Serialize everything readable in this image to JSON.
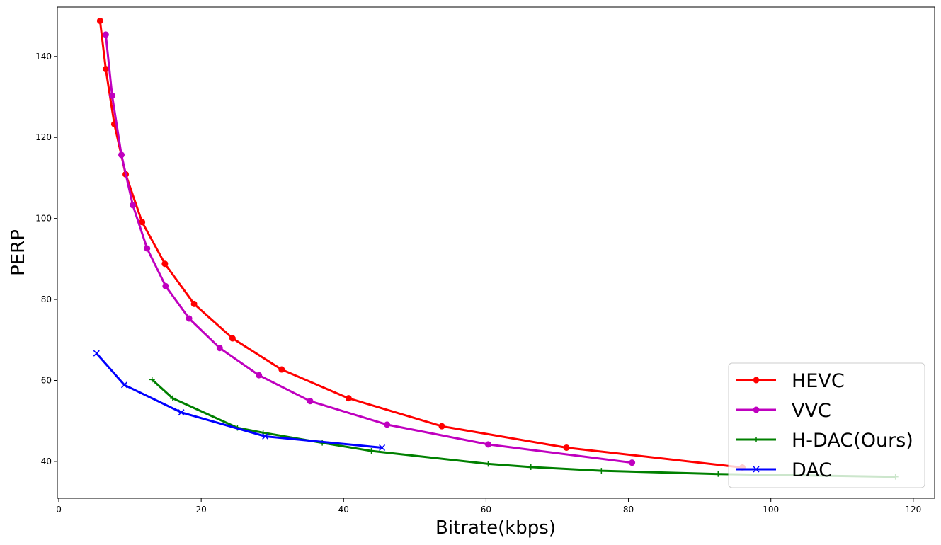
{
  "chart_data": {
    "type": "line",
    "xlabel": "Bitrate(kbps)",
    "ylabel": "PERP",
    "xlim": [
      -0.2,
      123
    ],
    "ylim": [
      30.9,
      152.2
    ],
    "xticks": [
      0,
      20,
      40,
      60,
      80,
      100,
      120
    ],
    "yticks": [
      40,
      60,
      80,
      100,
      120,
      140
    ],
    "grid": false,
    "legend_position": "lower-right",
    "series": [
      {
        "name": "HEVC",
        "color": "#ff0000",
        "marker": "circle",
        "points": [
          [
            5.8,
            148.8
          ],
          [
            6.6,
            136.9
          ],
          [
            7.8,
            123.3
          ],
          [
            9.4,
            110.9
          ],
          [
            11.7,
            99.1
          ],
          [
            14.9,
            88.8
          ],
          [
            19.0,
            78.9
          ],
          [
            24.4,
            70.4
          ],
          [
            31.3,
            62.7
          ],
          [
            40.7,
            55.6
          ],
          [
            53.8,
            48.7
          ],
          [
            71.3,
            43.4
          ],
          [
            96.0,
            38.5
          ]
        ]
      },
      {
        "name": "VVC",
        "color": "#bf00bf",
        "marker": "circle",
        "points": [
          [
            6.6,
            145.4
          ],
          [
            7.5,
            130.3
          ],
          [
            8.8,
            115.7
          ],
          [
            10.4,
            103.3
          ],
          [
            12.4,
            92.6
          ],
          [
            15.0,
            83.3
          ],
          [
            18.3,
            75.3
          ],
          [
            22.6,
            68.0
          ],
          [
            28.1,
            61.3
          ],
          [
            35.3,
            54.9
          ],
          [
            46.1,
            49.1
          ],
          [
            60.3,
            44.2
          ],
          [
            80.5,
            39.7
          ]
        ]
      },
      {
        "name": "H-DAC(Ours)",
        "color": "#008000",
        "marker": "plus",
        "points": [
          [
            13.1,
            60.2
          ],
          [
            16.0,
            55.6
          ],
          [
            25.1,
            48.3
          ],
          [
            28.7,
            47.1
          ],
          [
            37.0,
            44.6
          ],
          [
            43.9,
            42.6
          ],
          [
            60.3,
            39.4
          ],
          [
            66.3,
            38.6
          ],
          [
            76.2,
            37.7
          ],
          [
            92.6,
            36.9
          ],
          [
            117.5,
            36.2
          ]
        ]
      },
      {
        "name": "DAC",
        "color": "#0000ff",
        "marker": "x",
        "points": [
          [
            5.3,
            66.7
          ],
          [
            9.2,
            58.9
          ],
          [
            17.2,
            52.1
          ],
          [
            29.0,
            46.2
          ],
          [
            45.4,
            43.4
          ]
        ]
      }
    ]
  }
}
